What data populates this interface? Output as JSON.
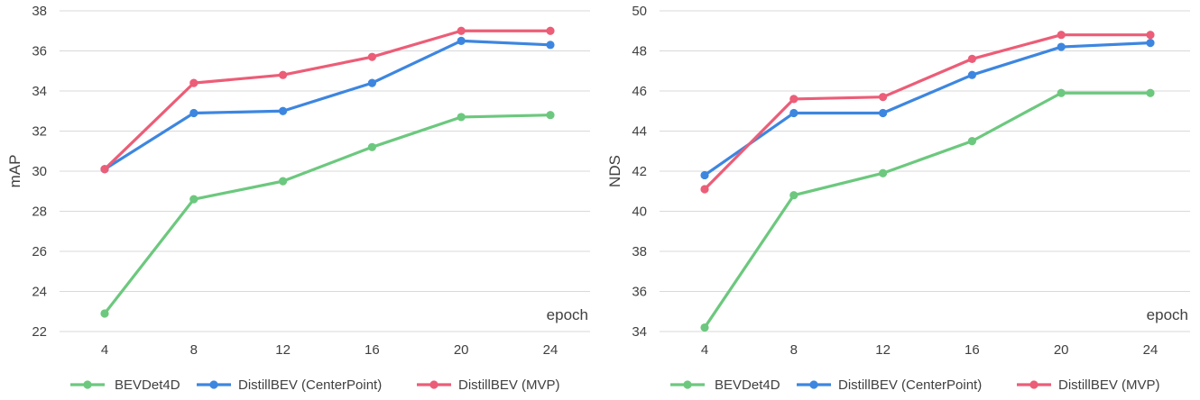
{
  "chart_data": [
    {
      "type": "line",
      "title": "",
      "xlabel": "epoch",
      "ylabel": "mAP",
      "x": [
        4,
        8,
        12,
        16,
        20,
        24
      ],
      "x_tick_labels": [
        "4",
        "8",
        "12",
        "16",
        "20",
        "24"
      ],
      "ylim": [
        22,
        38
      ],
      "y_tick_labels": [
        "22",
        "24",
        "26",
        "28",
        "30",
        "32",
        "34",
        "36",
        "38"
      ],
      "grid": true,
      "legend_position": "bottom",
      "series": [
        {
          "name": "BEVDet4D",
          "color": "#6cc87e",
          "values": [
            22.9,
            28.6,
            29.5,
            31.2,
            32.7,
            32.8
          ]
        },
        {
          "name": "DistillBEV (CenterPoint)",
          "color": "#3d86e0",
          "values": [
            30.1,
            32.9,
            33.0,
            34.4,
            36.5,
            36.3
          ]
        },
        {
          "name": "DistillBEV (MVP)",
          "color": "#ec5d77",
          "values": [
            30.1,
            34.4,
            34.8,
            35.7,
            37.0,
            37.0
          ]
        }
      ]
    },
    {
      "type": "line",
      "title": "",
      "xlabel": "epoch",
      "ylabel": "NDS",
      "x": [
        4,
        8,
        12,
        16,
        20,
        24
      ],
      "x_tick_labels": [
        "4",
        "8",
        "12",
        "16",
        "20",
        "24"
      ],
      "ylim": [
        34,
        50
      ],
      "y_tick_labels": [
        "34",
        "36",
        "38",
        "40",
        "42",
        "44",
        "46",
        "48",
        "50"
      ],
      "grid": true,
      "legend_position": "bottom",
      "series": [
        {
          "name": "BEVDet4D",
          "color": "#6cc87e",
          "values": [
            34.2,
            40.8,
            41.9,
            43.5,
            45.9,
            45.9
          ]
        },
        {
          "name": "DistillBEV (CenterPoint)",
          "color": "#3d86e0",
          "values": [
            41.8,
            44.9,
            44.9,
            46.8,
            48.2,
            48.4
          ]
        },
        {
          "name": "DistillBEV (MVP)",
          "color": "#ec5d77",
          "values": [
            41.1,
            45.6,
            45.7,
            47.6,
            48.8,
            48.8
          ]
        }
      ]
    }
  ]
}
